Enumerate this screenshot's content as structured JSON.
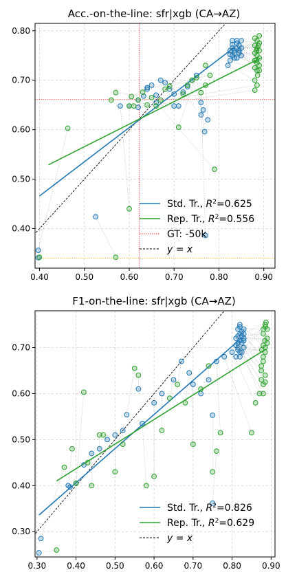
{
  "chart_data": [
    {
      "type": "scatter",
      "title": "Acc.-on-the-line: sfr|xgb  (CA→AZ)",
      "xlim": [
        0.39,
        0.925
      ],
      "ylim": [
        0.32,
        0.815
      ],
      "xticks": [
        0.4,
        0.5,
        0.6,
        0.7,
        0.8,
        0.9
      ],
      "yticks": [
        0.4,
        0.5,
        0.6,
        0.7,
        0.8
      ],
      "xtick_labels": [
        "0.40",
        "0.50",
        "0.60",
        "0.70",
        "0.80",
        "0.90"
      ],
      "ytick_labels": [
        "0.40",
        "0.50",
        "0.60",
        "0.70",
        "0.80"
      ],
      "grid": true,
      "legend_position": "lower right",
      "ref_lines": {
        "gt_x": 0.622,
        "gt_y": 0.661,
        "baseline_y": 0.34
      },
      "series": [
        {
          "name": "Std. Tr.",
          "color": "#1f77b4",
          "r2_label": "=0.625",
          "fit": [
            [
              0.4,
              0.466
            ],
            [
              0.835,
              0.767
            ]
          ],
          "points": [
            [
              0.397,
              0.356
            ],
            [
              0.397,
              0.341
            ],
            [
              0.525,
              0.424
            ],
            [
              0.58,
              0.648
            ],
            [
              0.62,
              0.66
            ],
            [
              0.632,
              0.668
            ],
            [
              0.64,
              0.685
            ],
            [
              0.65,
              0.69
            ],
            [
              0.66,
              0.67
            ],
            [
              0.67,
              0.7
            ],
            [
              0.68,
              0.695
            ],
            [
              0.69,
              0.682
            ],
            [
              0.7,
              0.672
            ],
            [
              0.71,
              0.648
            ],
            [
              0.72,
              0.676
            ],
            [
              0.73,
              0.687
            ],
            [
              0.74,
              0.7
            ],
            [
              0.75,
              0.71
            ],
            [
              0.76,
              0.63
            ],
            [
              0.765,
              0.64
            ],
            [
              0.76,
              0.655
            ],
            [
              0.768,
              0.596
            ],
            [
              0.77,
              0.386
            ],
            [
              0.775,
              0.62
            ],
            [
              0.7,
              0.648
            ],
            [
              0.66,
              0.655
            ],
            [
              0.64,
              0.682
            ],
            [
              0.62,
              0.645
            ],
            [
              0.6,
              0.648
            ],
            [
              0.82,
              0.73
            ],
            [
              0.825,
              0.74
            ],
            [
              0.83,
              0.75
            ],
            [
              0.835,
              0.76
            ],
            [
              0.84,
              0.78
            ],
            [
              0.845,
              0.77
            ],
            [
              0.83,
              0.772
            ],
            [
              0.835,
              0.755
            ],
            [
              0.84,
              0.745
            ],
            [
              0.845,
              0.76
            ],
            [
              0.85,
              0.75
            ],
            [
              0.83,
              0.765
            ],
            [
              0.825,
              0.752
            ],
            [
              0.84,
              0.765
            ],
            [
              0.85,
              0.78
            ],
            [
              0.835,
              0.745
            ],
            [
              0.83,
              0.78
            ],
            [
              0.845,
              0.755
            ],
            [
              0.84,
              0.775
            ],
            [
              0.825,
              0.76
            ],
            [
              0.85,
              0.765
            ]
          ]
        },
        {
          "name": "Rep. Tr.",
          "color": "#2ca02c",
          "r2_label": "=0.556",
          "fit": [
            [
              0.42,
              0.529
            ],
            [
              0.893,
              0.745
            ]
          ],
          "points": [
            [
              0.463,
              0.603
            ],
            [
              0.4,
              0.342
            ],
            [
              0.57,
              0.342
            ],
            [
              0.6,
              0.44
            ],
            [
              0.56,
              0.66
            ],
            [
              0.57,
              0.675
            ],
            [
              0.6,
              0.648
            ],
            [
              0.605,
              0.667
            ],
            [
              0.61,
              0.648
            ],
            [
              0.62,
              0.66
            ],
            [
              0.63,
              0.676
            ],
            [
              0.64,
              0.65
            ],
            [
              0.65,
              0.665
            ],
            [
              0.66,
              0.648
            ],
            [
              0.67,
              0.66
            ],
            [
              0.68,
              0.682
            ],
            [
              0.69,
              0.688
            ],
            [
              0.71,
              0.605
            ],
            [
              0.72,
              0.672
            ],
            [
              0.73,
              0.69
            ],
            [
              0.74,
              0.7
            ],
            [
              0.75,
              0.705
            ],
            [
              0.76,
              0.675
            ],
            [
              0.77,
              0.69
            ],
            [
              0.77,
              0.73
            ],
            [
              0.79,
              0.52
            ],
            [
              0.78,
              0.71
            ],
            [
              0.88,
              0.68
            ],
            [
              0.885,
              0.69
            ],
            [
              0.88,
              0.7
            ],
            [
              0.885,
              0.72
            ],
            [
              0.89,
              0.73
            ],
            [
              0.88,
              0.74
            ],
            [
              0.885,
              0.75
            ],
            [
              0.89,
              0.76
            ],
            [
              0.88,
              0.77
            ],
            [
              0.885,
              0.78
            ],
            [
              0.89,
              0.79
            ],
            [
              0.88,
              0.725
            ],
            [
              0.885,
              0.735
            ],
            [
              0.89,
              0.745
            ],
            [
              0.88,
              0.755
            ],
            [
              0.885,
              0.765
            ],
            [
              0.89,
              0.775
            ],
            [
              0.88,
              0.785
            ],
            [
              0.886,
              0.71
            ],
            [
              0.89,
              0.72
            ],
            [
              0.884,
              0.76
            ],
            [
              0.888,
              0.77
            ],
            [
              0.883,
              0.74
            ]
          ]
        }
      ],
      "extra_legend": [
        "GT: -50k",
        "y = x"
      ]
    },
    {
      "type": "scatter",
      "title": "F1-on-the-line: sfr|xgb  (CA→AZ)",
      "xlim": [
        0.295,
        0.91
      ],
      "ylim": [
        0.245,
        0.78
      ],
      "xticks": [
        0.3,
        0.4,
        0.5,
        0.6,
        0.7,
        0.8,
        0.9
      ],
      "yticks": [
        0.3,
        0.4,
        0.5,
        0.6,
        0.7
      ],
      "xtick_labels": [
        "0.30",
        "0.40",
        "0.50",
        "0.60",
        "0.70",
        "0.80",
        "0.90"
      ],
      "ytick_labels": [
        "0.30",
        "0.40",
        "0.50",
        "0.60",
        "0.70"
      ],
      "grid": true,
      "legend_position": "lower right",
      "series": [
        {
          "name": "Std. Tr.",
          "color": "#1f77b4",
          "r2_label": "=0.826",
          "fit": [
            [
              0.305,
              0.336
            ],
            [
              0.826,
              0.722
            ]
          ],
          "points": [
            [
              0.305,
              0.254
            ],
            [
              0.31,
              0.285
            ],
            [
              0.38,
              0.4
            ],
            [
              0.385,
              0.397
            ],
            [
              0.4,
              0.405
            ],
            [
              0.42,
              0.445
            ],
            [
              0.44,
              0.47
            ],
            [
              0.46,
              0.48
            ],
            [
              0.48,
              0.5
            ],
            [
              0.5,
              0.51
            ],
            [
              0.52,
              0.52
            ],
            [
              0.53,
              0.554
            ],
            [
              0.56,
              0.61
            ],
            [
              0.57,
              0.535
            ],
            [
              0.6,
              0.58
            ],
            [
              0.62,
              0.6
            ],
            [
              0.65,
              0.63
            ],
            [
              0.67,
              0.67
            ],
            [
              0.69,
              0.645
            ],
            [
              0.7,
              0.62
            ],
            [
              0.72,
              0.6
            ],
            [
              0.74,
              0.63
            ],
            [
              0.75,
              0.553
            ],
            [
              0.75,
              0.362
            ],
            [
              0.76,
              0.67
            ],
            [
              0.78,
              0.68
            ],
            [
              0.8,
              0.69
            ],
            [
              0.81,
              0.72
            ],
            [
              0.815,
              0.7
            ],
            [
              0.82,
              0.73
            ],
            [
              0.825,
              0.71
            ],
            [
              0.815,
              0.74
            ],
            [
              0.82,
              0.75
            ],
            [
              0.83,
              0.72
            ],
            [
              0.81,
              0.68
            ],
            [
              0.82,
              0.69
            ],
            [
              0.815,
              0.71
            ],
            [
              0.825,
              0.735
            ],
            [
              0.83,
              0.7
            ],
            [
              0.82,
              0.745
            ],
            [
              0.815,
              0.725
            ],
            [
              0.83,
              0.715
            ],
            [
              0.825,
              0.69
            ],
            [
              0.81,
              0.705
            ],
            [
              0.82,
              0.715
            ],
            [
              0.83,
              0.74
            ],
            [
              0.815,
              0.695
            ],
            [
              0.825,
              0.725
            ],
            [
              0.82,
              0.68
            ],
            [
              0.83,
              0.73
            ]
          ]
        },
        {
          "name": "Rep. Tr.",
          "color": "#2ca02c",
          "r2_label": "=0.629",
          "fit": [
            [
              0.35,
              0.41
            ],
            [
              0.887,
              0.697
            ]
          ],
          "points": [
            [
              0.35,
              0.26
            ],
            [
              0.37,
              0.44
            ],
            [
              0.39,
              0.48
            ],
            [
              0.4,
              0.405
            ],
            [
              0.42,
              0.603
            ],
            [
              0.43,
              0.45
            ],
            [
              0.44,
              0.4
            ],
            [
              0.46,
              0.51
            ],
            [
              0.47,
              0.51
            ],
            [
              0.5,
              0.43
            ],
            [
              0.52,
              0.49
            ],
            [
              0.55,
              0.655
            ],
            [
              0.56,
              0.64
            ],
            [
              0.58,
              0.4
            ],
            [
              0.6,
              0.42
            ],
            [
              0.62,
              0.52
            ],
            [
              0.64,
              0.59
            ],
            [
              0.66,
              0.62
            ],
            [
              0.68,
              0.58
            ],
            [
              0.7,
              0.49
            ],
            [
              0.72,
              0.61
            ],
            [
              0.74,
              0.66
            ],
            [
              0.75,
              0.43
            ],
            [
              0.76,
              0.475
            ],
            [
              0.77,
              0.515
            ],
            [
              0.85,
              0.515
            ],
            [
              0.86,
              0.58
            ],
            [
              0.87,
              0.6
            ],
            [
              0.88,
              0.62
            ],
            [
              0.885,
              0.64
            ],
            [
              0.875,
              0.66
            ],
            [
              0.88,
              0.68
            ],
            [
              0.885,
              0.7
            ],
            [
              0.89,
              0.72
            ],
            [
              0.88,
              0.74
            ],
            [
              0.885,
              0.75
            ],
            [
              0.875,
              0.65
            ],
            [
              0.88,
              0.67
            ],
            [
              0.885,
              0.69
            ],
            [
              0.89,
              0.71
            ],
            [
              0.88,
              0.73
            ],
            [
              0.885,
              0.745
            ],
            [
              0.875,
              0.63
            ],
            [
              0.88,
              0.6
            ],
            [
              0.885,
              0.625
            ],
            [
              0.89,
              0.74
            ],
            [
              0.876,
              0.695
            ],
            [
              0.884,
              0.715
            ],
            [
              0.88,
              0.705
            ],
            [
              0.887,
              0.755
            ]
          ]
        }
      ],
      "extra_legend": [
        "y = x"
      ]
    }
  ]
}
